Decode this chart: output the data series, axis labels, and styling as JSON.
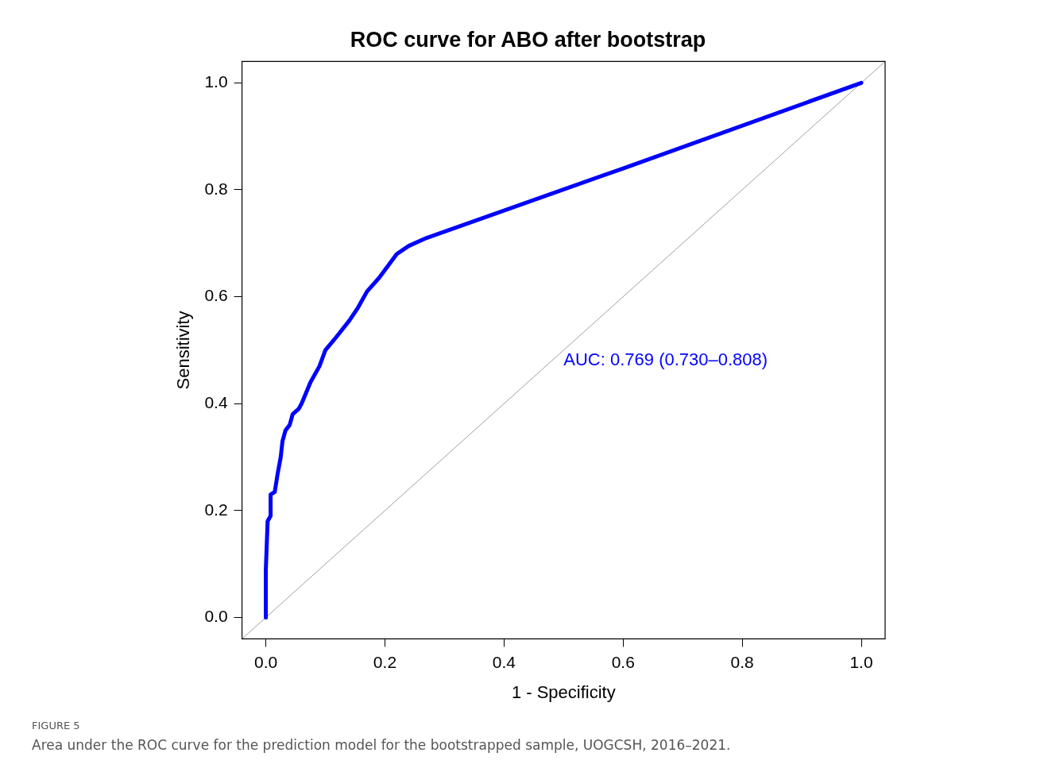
{
  "chart_data": {
    "type": "line",
    "title": "ROC curve for ABO after bootstrap",
    "xlabel": "1 - Specificity",
    "ylabel": "Sensitivity",
    "xlim": [
      -0.04,
      1.04
    ],
    "ylim": [
      -0.04,
      1.04
    ],
    "xticks": [
      {
        "value": 0,
        "label": "0.0"
      },
      {
        "value": 0.2,
        "label": "0.2"
      },
      {
        "value": 0.4,
        "label": "0.4"
      },
      {
        "value": 0.6,
        "label": "0.6"
      },
      {
        "value": 0.8,
        "label": "0.8"
      },
      {
        "value": 1,
        "label": "1.0"
      }
    ],
    "yticks": [
      {
        "value": 0,
        "label": "0.0"
      },
      {
        "value": 0.2,
        "label": "0.2"
      },
      {
        "value": 0.4,
        "label": "0.4"
      },
      {
        "value": 0.6,
        "label": "0.6"
      },
      {
        "value": 0.8,
        "label": "0.8"
      },
      {
        "value": 1,
        "label": "1.0"
      }
    ],
    "grid": false,
    "legend": false,
    "marker": "none",
    "line_style": "solid",
    "series": [
      {
        "color": "#0000ff",
        "x": [
          0,
          0,
          0.003,
          0.008,
          0.008,
          0.015,
          0.02,
          0.025,
          0.028,
          0.033,
          0.04,
          0.045,
          0.055,
          0.06,
          0.075,
          0.09,
          0.1,
          0.115,
          0.14,
          0.155,
          0.17,
          0.19,
          0.22,
          0.24,
          0.27,
          0.6,
          1
        ],
        "values": [
          0,
          0.09,
          0.18,
          0.19,
          0.23,
          0.235,
          0.27,
          0.3,
          0.33,
          0.35,
          0.36,
          0.38,
          0.39,
          0.4,
          0.44,
          0.47,
          0.5,
          0.52,
          0.555,
          0.58,
          0.61,
          0.635,
          0.68,
          0.695,
          0.71,
          0.84,
          1
        ]
      },
      {
        "color": "#a0a0a0",
        "x": [
          -0.04,
          1.04
        ],
        "values": [
          -0.04,
          1.04
        ]
      }
    ],
    "annotations": [
      "AUC: 0.769 (0.730–0.808)",
      "FIGURE 5",
      "Area under the ROC curve for the prediction model for the bootstrapped sample, UOGCSH, 2016–2021."
    ]
  }
}
